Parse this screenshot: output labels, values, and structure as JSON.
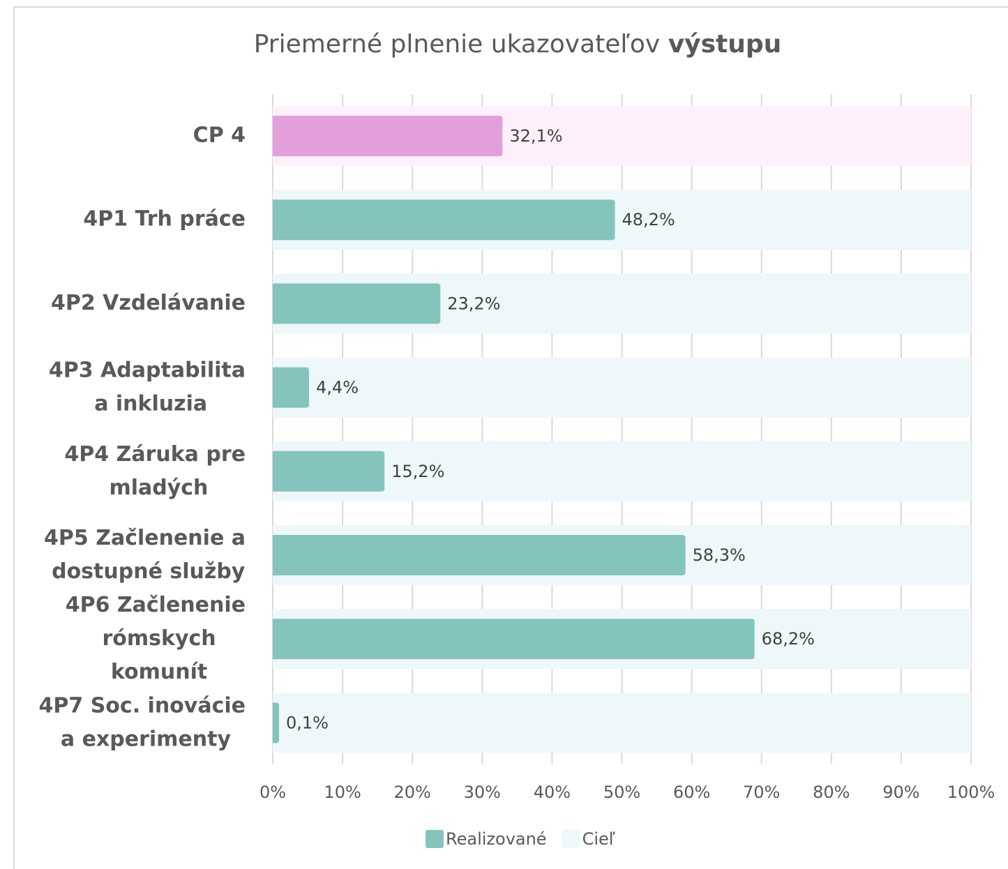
{
  "chart_data": {
    "type": "bar",
    "orientation": "horizontal",
    "title": [
      "Priemerné plnenie ukazovateľov",
      "výstupu"
    ],
    "categories": [
      "CP 4",
      "4P1 Trh práce",
      "4P2 Vzdelávanie",
      "4P3 Adaptabilita a inkluzia",
      "4P4 Záruka pre mladých",
      "4P5 Začlenenie a dostupné služby",
      "4P6 Začlenenie rómskych komunít",
      "4P7 Soc. inovácie a experimenty"
    ],
    "series": [
      {
        "name": "Realizované",
        "color": "#85c4bc",
        "colors": [
          "#e39fdc",
          "#85c4bc",
          "#85c4bc",
          "#85c4bc",
          "#85c4bc",
          "#85c4bc",
          "#85c4bc",
          "#85c4bc"
        ],
        "values": [
          32.1,
          48.2,
          23.2,
          4.4,
          15.2,
          58.3,
          68.2,
          0.1
        ],
        "value_labels": [
          "32,1%",
          "48,2%",
          "23,2%",
          "4,4%",
          "15,2%",
          "58,3%",
          "68,2%",
          "0,1%"
        ]
      },
      {
        "name": "Cieľ",
        "color": "#eef7f9",
        "colors": [
          "#fdf0fa",
          "#eef7f9",
          "#eef7f9",
          "#eef7f9",
          "#eef7f9",
          "#eef7f9",
          "#eef7f9",
          "#eef7f9"
        ],
        "values": [
          100,
          100,
          100,
          100,
          100,
          100,
          100,
          100
        ]
      }
    ],
    "xlim": [
      0,
      100
    ],
    "xticks": [
      {
        "value": 0,
        "label": "0%"
      },
      {
        "value": 10,
        "label": "10%"
      },
      {
        "value": 20,
        "label": "20%"
      },
      {
        "value": 30,
        "label": "30%"
      },
      {
        "value": 40,
        "label": "40%"
      },
      {
        "value": 50,
        "label": "50%"
      },
      {
        "value": 60,
        "label": "60%"
      },
      {
        "value": 70,
        "label": "70%"
      },
      {
        "value": 80,
        "label": "80%"
      },
      {
        "value": 90,
        "label": "90%"
      },
      {
        "value": 100,
        "label": "100%"
      }
    ],
    "grid": true,
    "legend": "bottom"
  }
}
